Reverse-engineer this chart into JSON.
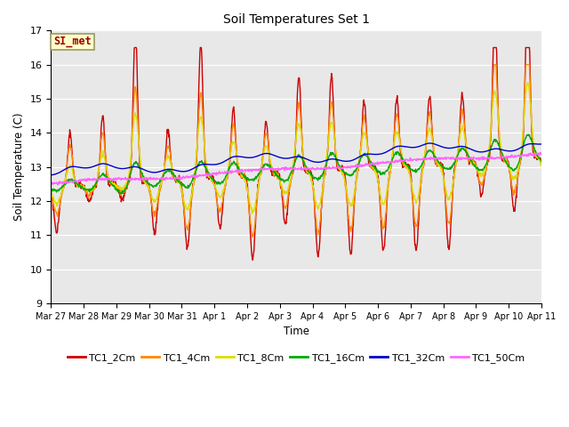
{
  "title": "Soil Temperatures Set 1",
  "xlabel": "Time",
  "ylabel": "Soil Temperature (C)",
  "ylim": [
    9.0,
    17.0
  ],
  "yticks": [
    9.0,
    10.0,
    11.0,
    12.0,
    13.0,
    14.0,
    15.0,
    16.0,
    17.0
  ],
  "series_colors": {
    "TC1_2Cm": "#cc0000",
    "TC1_4Cm": "#ff8800",
    "TC1_8Cm": "#dddd00",
    "TC1_16Cm": "#00aa00",
    "TC1_32Cm": "#0000cc",
    "TC1_50Cm": "#ff66ff"
  },
  "annotation_text": "SI_met",
  "annotation_color": "#990000",
  "annotation_bg": "#ffffcc",
  "annotation_border": "#999966",
  "bg_color": "#e8e8e8",
  "x_tick_labels": [
    "Mar 27",
    "Mar 28",
    "Mar 29",
    "Mar 30",
    "Mar 31",
    "Apr 1",
    "Apr 2",
    "Apr 3",
    "Apr 4",
    "Apr 5",
    "Apr 6",
    "Apr 7",
    "Apr 8",
    "Apr 9",
    "Apr 10",
    "Apr 11"
  ],
  "legend_labels": [
    "TC1_2Cm",
    "TC1_4Cm",
    "TC1_8Cm",
    "TC1_16Cm",
    "TC1_32Cm",
    "TC1_50Cm"
  ]
}
